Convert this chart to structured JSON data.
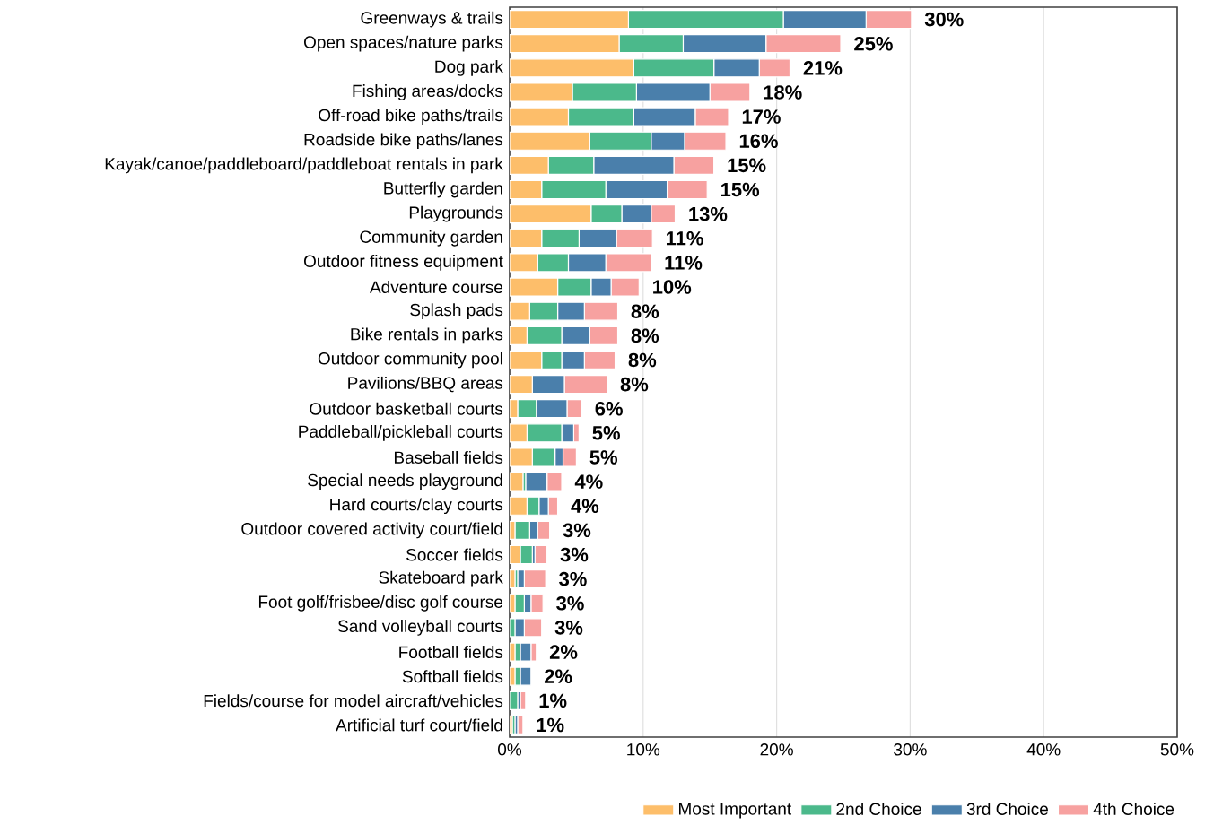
{
  "chart_data": {
    "type": "bar",
    "orientation": "horizontal",
    "stacked": true,
    "categories": [
      "Greenways & trails",
      "Open spaces/nature parks",
      "Dog park",
      "Fishing areas/docks",
      "Off-road bike paths/trails",
      "Roadside bike paths/lanes",
      "Kayak/canoe/paddleboard/paddleboat rentals in park",
      "Butterfly garden",
      "Playgrounds",
      "Community garden",
      "Outdoor fitness equipment",
      "Adventure course",
      "Splash pads",
      "Bike rentals in parks",
      "Outdoor community pool",
      "Pavilions/BBQ areas",
      "Outdoor basketball courts",
      "Paddleball/pickleball courts",
      "Baseball fields",
      "Special needs playground",
      "Hard courts/clay courts",
      "Outdoor covered activity court/field",
      "Soccer fields",
      "Skateboard park",
      "Foot golf/frisbee/disc golf course",
      "Sand volleyball courts",
      "Football fields",
      "Softball fields",
      "Fields/course for model aircraft/vehicles",
      "Artificial turf court/field"
    ],
    "series": [
      {
        "name": "Most Important",
        "color": "#fdbe6a",
        "values": [
          8.9,
          8.2,
          9.3,
          4.7,
          4.4,
          6.0,
          2.9,
          2.4,
          6.1,
          2.4,
          2.1,
          3.6,
          1.5,
          1.3,
          2.4,
          1.7,
          0.6,
          1.3,
          1.7,
          1.0,
          1.3,
          0.4,
          0.8,
          0.4,
          0.4,
          0,
          0.4,
          0.4,
          0,
          0.2
        ]
      },
      {
        "name": "2nd Choice",
        "color": "#4bb98b",
        "values": [
          11.6,
          4.8,
          6.0,
          4.8,
          4.9,
          4.6,
          3.4,
          4.8,
          2.3,
          2.8,
          2.3,
          2.5,
          2.1,
          2.6,
          1.5,
          0,
          1.4,
          2.6,
          1.7,
          0.2,
          0.9,
          1.1,
          0.9,
          0.2,
          0.7,
          0.4,
          0.4,
          0.4,
          0.6,
          0.2
        ]
      },
      {
        "name": "3rd Choice",
        "color": "#4a7fab",
        "values": [
          6.2,
          6.2,
          3.4,
          5.5,
          4.6,
          2.5,
          6.0,
          4.6,
          2.2,
          2.8,
          2.8,
          1.5,
          2.0,
          2.1,
          1.7,
          2.4,
          2.3,
          0.9,
          0.6,
          1.6,
          0.7,
          0.6,
          0.2,
          0.5,
          0.5,
          0.7,
          0.8,
          0.8,
          0.2,
          0.2
        ]
      },
      {
        "name": "4th Choice",
        "color": "#f7a1a0",
        "values": [
          3.4,
          5.6,
          2.3,
          3.0,
          2.5,
          3.1,
          3.0,
          3.0,
          1.8,
          2.7,
          3.4,
          2.1,
          2.5,
          2.1,
          2.3,
          3.2,
          1.1,
          0.4,
          1.0,
          1.1,
          0.7,
          0.9,
          0.9,
          1.6,
          0.9,
          1.3,
          0.4,
          0,
          0.4,
          0.4
        ]
      }
    ],
    "totals": [
      "30%",
      "25%",
      "21%",
      "18%",
      "17%",
      "16%",
      "15%",
      "15%",
      "13%",
      "11%",
      "11%",
      "10%",
      "8%",
      "8%",
      "8%",
      "8%",
      "6%",
      "5%",
      "5%",
      "4%",
      "4%",
      "3%",
      "3%",
      "3%",
      "3%",
      "3%",
      "2%",
      "2%",
      "1%",
      "1%"
    ],
    "xlim": [
      0,
      50
    ],
    "xticks": [
      {
        "value": 0,
        "label": "0%"
      },
      {
        "value": 10,
        "label": "10%"
      },
      {
        "value": 20,
        "label": "20%"
      },
      {
        "value": 30,
        "label": "30%"
      },
      {
        "value": 40,
        "label": "40%"
      },
      {
        "value": 50,
        "label": "50%"
      }
    ],
    "grid": "x",
    "legend": "bottom right"
  }
}
